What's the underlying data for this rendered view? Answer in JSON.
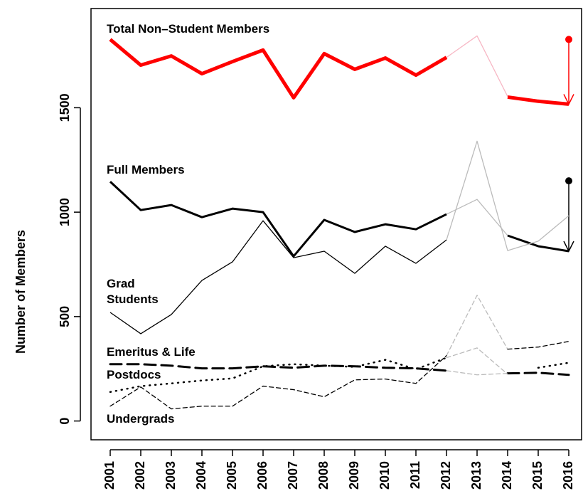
{
  "chart_data": {
    "type": "line",
    "y_label": "Number of Members",
    "categories": [
      "2001",
      "2002",
      "2003",
      "2004",
      "2005",
      "2006",
      "2007",
      "2008",
      "2009",
      "2010",
      "2011",
      "2012",
      "2013",
      "2014",
      "2015",
      "2016"
    ],
    "ylim": [
      -90,
      1975
    ],
    "yticks": [
      0,
      500,
      1000,
      1500
    ],
    "series": [
      {
        "name": "Total Non–Student Members",
        "color": "#ff0000",
        "line_width": 5,
        "dash": "none",
        "values": [
          1827,
          1704,
          1748,
          1663,
          1721,
          1776,
          1548,
          1759,
          1684,
          1738,
          1656,
          1741,
          null,
          1551,
          1531,
          1517
        ],
        "projection_color": "#f7b7c4",
        "projection_values": [
          null,
          null,
          null,
          null,
          null,
          null,
          null,
          null,
          null,
          null,
          null,
          1741,
          1844,
          1554,
          null,
          null
        ],
        "estimate": 1827
      },
      {
        "name": "Full Members",
        "color": "#000000",
        "line_width": 3,
        "dash": "none",
        "values": [
          1146,
          1010,
          1034,
          976,
          1017,
          1000,
          789,
          963,
          905,
          942,
          918,
          990,
          null,
          888,
          837,
          813
        ],
        "projection_color": "#bbbbbb",
        "projection_values": [
          null,
          null,
          null,
          null,
          null,
          null,
          null,
          null,
          null,
          null,
          null,
          990,
          1061,
          888,
          null,
          null
        ],
        "estimate": 1150
      },
      {
        "name": "Grad Students",
        "color": "#000000",
        "line_width": 1.3,
        "dash": "none",
        "values": [
          520,
          418,
          510,
          673,
          762,
          959,
          782,
          813,
          707,
          837,
          755,
          867,
          null,
          null,
          null,
          null
        ],
        "projection_color": "#bbbbbb",
        "projection_values": [
          null,
          null,
          null,
          null,
          null,
          null,
          null,
          null,
          null,
          null,
          null,
          867,
          1340,
          816,
          861,
          983
        ]
      },
      {
        "name": "Emeritus & Life",
        "color": "#000000",
        "line_width": 3,
        "dash": "16 8",
        "values": [
          272,
          272,
          265,
          252,
          252,
          262,
          255,
          265,
          262,
          255,
          252,
          241,
          null,
          228,
          231,
          221
        ],
        "projection_color": "#bbbbbb",
        "projection_values": [
          null,
          null,
          null,
          null,
          null,
          null,
          null,
          null,
          null,
          null,
          null,
          241,
          221,
          228,
          null,
          null
        ]
      },
      {
        "name": "Postdocs",
        "color": "#000000",
        "line_width": 2.5,
        "dash": "1 7",
        "values": [
          139,
          167,
          180,
          194,
          204,
          262,
          272,
          265,
          259,
          293,
          248,
          303,
          null,
          null,
          255,
          279
        ],
        "projection_color": "#bbbbbb",
        "projection_values": [
          null,
          null,
          null,
          null,
          null,
          null,
          null,
          null,
          null,
          null,
          null,
          303,
          350,
          224,
          null,
          null
        ]
      },
      {
        "name": "Undergrads",
        "color": "#000000",
        "line_width": 1.3,
        "dash": "6 4",
        "values": [
          71,
          163,
          58,
          71,
          71,
          167,
          150,
          116,
          197,
          201,
          180,
          313,
          null,
          344,
          354,
          381
        ],
        "projection_color": "#bbbbbb",
        "projection_values": [
          null,
          null,
          null,
          null,
          null,
          null,
          null,
          null,
          null,
          null,
          null,
          313,
          602,
          344,
          null,
          null
        ]
      }
    ]
  }
}
